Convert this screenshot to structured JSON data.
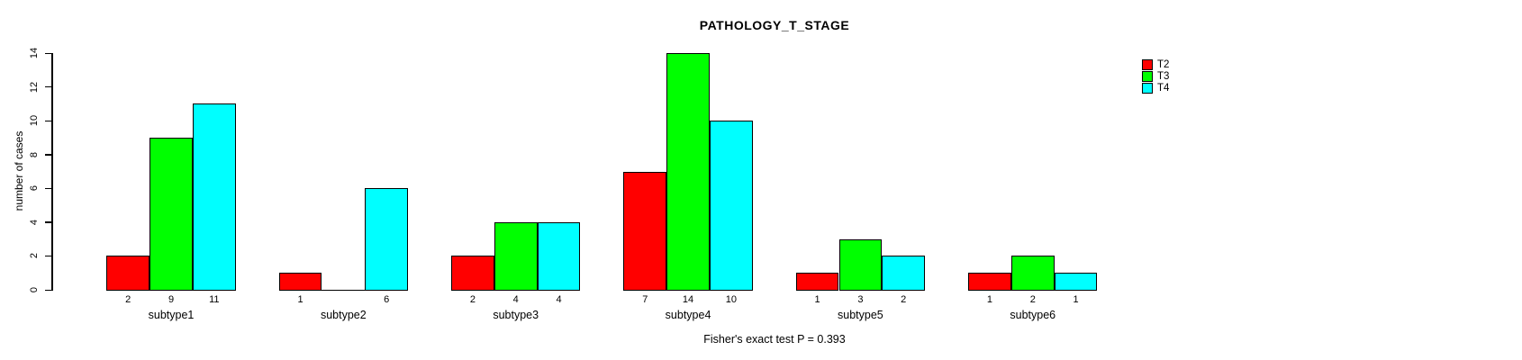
{
  "chart_data": {
    "type": "bar",
    "title": "PATHOLOGY_T_STAGE",
    "ylabel": "number of cases",
    "xlabel": "",
    "footnote": "Fisher's exact test P = 0.393",
    "categories": [
      "subtype1",
      "subtype2",
      "subtype3",
      "subtype4",
      "subtype5",
      "subtype6"
    ],
    "series": [
      {
        "name": "T2",
        "color": "#FF0000",
        "values": [
          2,
          1,
          2,
          7,
          1,
          1
        ]
      },
      {
        "name": "T3",
        "color": "#00FF00",
        "values": [
          9,
          0,
          4,
          14,
          3,
          2
        ]
      },
      {
        "name": "T4",
        "color": "#00FFFF",
        "values": [
          11,
          6,
          4,
          10,
          2,
          1
        ]
      }
    ],
    "ylim": [
      0,
      14
    ],
    "yticks": [
      0,
      2,
      4,
      6,
      8,
      10,
      12,
      14
    ],
    "legend_position": "top-right",
    "grid": false,
    "bar_value_labels": true,
    "zero_value_labels_hidden": true
  },
  "colors": {
    "background": "#FFFFFF",
    "axis": "#000000",
    "text": "#000000"
  }
}
